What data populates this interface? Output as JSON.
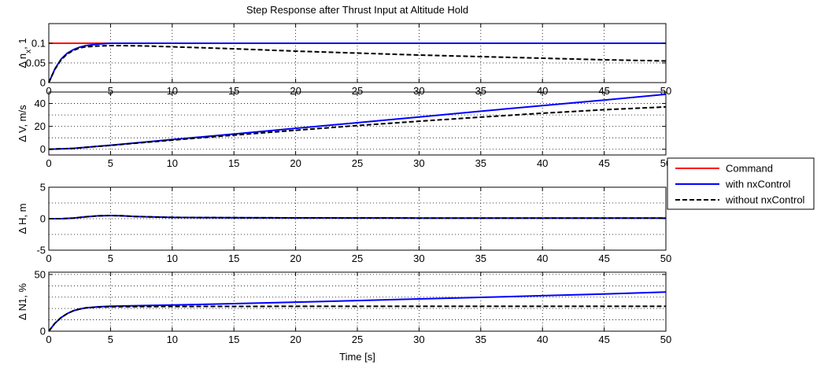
{
  "chart_data": {
    "type": "line",
    "title": "Step Response after Thrust Input at Altitude Hold",
    "xlabel": "Time [s]",
    "xlim": [
      0,
      50
    ],
    "xticks": [
      "0",
      "5",
      "10",
      "15",
      "20",
      "25",
      "30",
      "35",
      "40",
      "45",
      "50"
    ],
    "grid": "dotted",
    "legend_position": "right",
    "legend": [
      {
        "name": "Command",
        "color": "#ff0000",
        "dash": "solid"
      },
      {
        "name": "with nxControl",
        "color": "#0000ff",
        "dash": "solid"
      },
      {
        "name": "without nxControl",
        "color": "#000000",
        "dash": "dashed"
      }
    ],
    "panels": [
      {
        "ylabel": "Δ n",
        "ylabel_subscript": "x",
        "ylabel_suffix": ", 1",
        "ylim": [
          0,
          0.15
        ],
        "yticks": [
          {
            "v": 0,
            "t": "0"
          },
          {
            "v": 0.05,
            "t": "0.05"
          },
          {
            "v": 0.1,
            "t": "0.1"
          }
        ],
        "ygrid": [
          0,
          0.05,
          0.1
        ],
        "series": [
          {
            "ref": 0,
            "points": [
              [
                0,
                0.1
              ],
              [
                50,
                0.1
              ]
            ]
          },
          {
            "ref": 1,
            "points": [
              [
                0,
                0
              ],
              [
                0.5,
                0.035
              ],
              [
                1,
                0.06
              ],
              [
                1.5,
                0.075
              ],
              [
                2,
                0.084
              ],
              [
                2.5,
                0.09
              ],
              [
                3,
                0.094
              ],
              [
                4,
                0.098
              ],
              [
                5,
                0.1
              ],
              [
                6,
                0.1
              ],
              [
                10,
                0.1
              ],
              [
                20,
                0.1
              ],
              [
                30,
                0.1
              ],
              [
                40,
                0.1
              ],
              [
                50,
                0.1
              ]
            ]
          },
          {
            "ref": 2,
            "points": [
              [
                0,
                0
              ],
              [
                0.5,
                0.034
              ],
              [
                1,
                0.058
              ],
              [
                1.5,
                0.073
              ],
              [
                2,
                0.082
              ],
              [
                2.5,
                0.088
              ],
              [
                3,
                0.091
              ],
              [
                4,
                0.093
              ],
              [
                5,
                0.094
              ],
              [
                6,
                0.094
              ],
              [
                8,
                0.093
              ],
              [
                10,
                0.091
              ],
              [
                15,
                0.086
              ],
              [
                20,
                0.08
              ],
              [
                25,
                0.075
              ],
              [
                30,
                0.07
              ],
              [
                35,
                0.066
              ],
              [
                40,
                0.062
              ],
              [
                45,
                0.058
              ],
              [
                50,
                0.055
              ]
            ]
          }
        ]
      },
      {
        "ylabel": "Δ V, m/s",
        "ylim": [
          -5,
          50
        ],
        "yticks": [
          {
            "v": 0,
            "t": "0"
          },
          {
            "v": 20,
            "t": "20"
          },
          {
            "v": 40,
            "t": "40"
          }
        ],
        "ygrid": [
          0,
          10,
          20,
          30,
          40
        ],
        "series": [
          {
            "ref": 1,
            "points": [
              [
                0,
                0
              ],
              [
                2,
                0.8
              ],
              [
                5,
                3.5
              ],
              [
                10,
                8.5
              ],
              [
                15,
                13.3
              ],
              [
                20,
                18.3
              ],
              [
                25,
                23.2
              ],
              [
                30,
                28.2
              ],
              [
                35,
                33.2
              ],
              [
                40,
                38.2
              ],
              [
                45,
                43
              ],
              [
                50,
                48
              ]
            ]
          },
          {
            "ref": 2,
            "points": [
              [
                0,
                0
              ],
              [
                2,
                0.8
              ],
              [
                5,
                3.4
              ],
              [
                10,
                8
              ],
              [
                15,
                12.3
              ],
              [
                20,
                16.6
              ],
              [
                25,
                20.7
              ],
              [
                30,
                24.5
              ],
              [
                35,
                28.1
              ],
              [
                40,
                31.5
              ],
              [
                45,
                34.5
              ],
              [
                50,
                37
              ]
            ]
          }
        ]
      },
      {
        "ylabel": "Δ H, m",
        "ylim": [
          -5,
          5
        ],
        "yticks": [
          {
            "v": -5,
            "t": "-5"
          },
          {
            "v": 0,
            "t": "0"
          },
          {
            "v": 5,
            "t": "5"
          }
        ],
        "ygrid": [
          -2.5,
          0,
          2.5
        ],
        "series": [
          {
            "ref": 1,
            "points": [
              [
                0,
                0
              ],
              [
                1,
                0
              ],
              [
                2,
                0.1
              ],
              [
                3,
                0.3
              ],
              [
                4,
                0.45
              ],
              [
                5,
                0.5
              ],
              [
                6,
                0.45
              ],
              [
                7,
                0.35
              ],
              [
                8,
                0.3
              ],
              [
                10,
                0.2
              ],
              [
                15,
                0.15
              ],
              [
                20,
                0.12
              ],
              [
                30,
                0.1
              ],
              [
                40,
                0.1
              ],
              [
                50,
                0.1
              ]
            ]
          },
          {
            "ref": 2,
            "points": [
              [
                0,
                0
              ],
              [
                1,
                0
              ],
              [
                2,
                0.1
              ],
              [
                3,
                0.3
              ],
              [
                4,
                0.45
              ],
              [
                5,
                0.5
              ],
              [
                6,
                0.45
              ],
              [
                7,
                0.35
              ],
              [
                8,
                0.3
              ],
              [
                10,
                0.2
              ],
              [
                15,
                0.15
              ],
              [
                20,
                0.12
              ],
              [
                30,
                0.1
              ],
              [
                40,
                0.1
              ],
              [
                50,
                0.1
              ]
            ]
          }
        ]
      },
      {
        "ylabel": "Δ N1, %",
        "ylim": [
          0,
          52
        ],
        "yticks": [
          {
            "v": 0,
            "t": "0"
          },
          {
            "v": 50,
            "t": "50"
          }
        ],
        "ygrid": [
          0,
          10,
          20,
          30,
          40,
          50
        ],
        "series": [
          {
            "ref": 1,
            "points": [
              [
                0,
                0
              ],
              [
                0.5,
                7
              ],
              [
                1,
                12
              ],
              [
                1.5,
                15.5
              ],
              [
                2,
                18
              ],
              [
                2.5,
                19.5
              ],
              [
                3,
                20.5
              ],
              [
                4,
                21.5
              ],
              [
                5,
                22
              ],
              [
                10,
                23
              ],
              [
                15,
                24.3
              ],
              [
                20,
                25.6
              ],
              [
                25,
                27
              ],
              [
                30,
                28.4
              ],
              [
                35,
                29.8
              ],
              [
                40,
                31.3
              ],
              [
                45,
                32.8
              ],
              [
                50,
                34.5
              ]
            ]
          },
          {
            "ref": 2,
            "points": [
              [
                0,
                0
              ],
              [
                0.5,
                7
              ],
              [
                1,
                12
              ],
              [
                1.5,
                15.5
              ],
              [
                2,
                18
              ],
              [
                2.5,
                19.5
              ],
              [
                3,
                20.5
              ],
              [
                4,
                21.2
              ],
              [
                5,
                21.5
              ],
              [
                10,
                21.8
              ],
              [
                20,
                21.9
              ],
              [
                30,
                21.9
              ],
              [
                40,
                21.9
              ],
              [
                50,
                21.9
              ]
            ]
          }
        ]
      }
    ]
  }
}
